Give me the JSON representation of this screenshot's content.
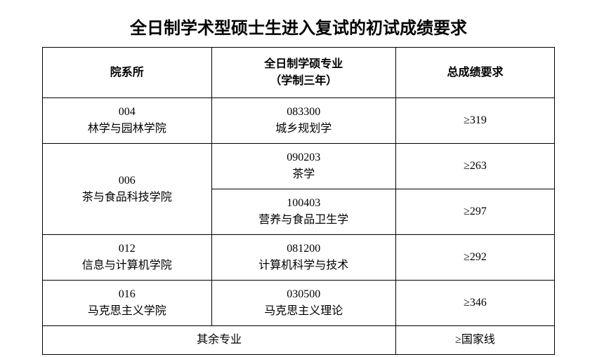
{
  "title": "全日制学术型硕士生进入复试的初试成绩要求",
  "headers": {
    "dept": "院系所",
    "major_line1": "全日制学硕专业",
    "major_line2": "（学制三年）",
    "score": "总成绩要求"
  },
  "rows": [
    {
      "dept_code": "004",
      "dept_name": "林学与园林学院",
      "major_code": "083300",
      "major_name": "城乡规划学",
      "score": "≥319",
      "rowspan": 1
    },
    {
      "dept_code": "006",
      "dept_name": "茶与食品科技学院",
      "major_code": "090203",
      "major_name": "茶学",
      "score": "≥263",
      "rowspan": 2
    },
    {
      "major_code": "100403",
      "major_name": "营养与食品卫生学",
      "score": "≥297"
    },
    {
      "dept_code": "012",
      "dept_name": "信息与计算机学院",
      "major_code": "081200",
      "major_name": "计算机科学与技术",
      "score": "≥292",
      "rowspan": 1
    },
    {
      "dept_code": "016",
      "dept_name": "马克思主义学院",
      "major_code": "030500",
      "major_name": "马克思主义理论",
      "score": "≥346",
      "rowspan": 1
    }
  ],
  "footer": {
    "label": "其余专业",
    "score": "≥国家线"
  },
  "styles": {
    "background": "#ffffff",
    "border_color": "#000000",
    "title_fontsize": 24,
    "cell_fontsize": 16
  }
}
